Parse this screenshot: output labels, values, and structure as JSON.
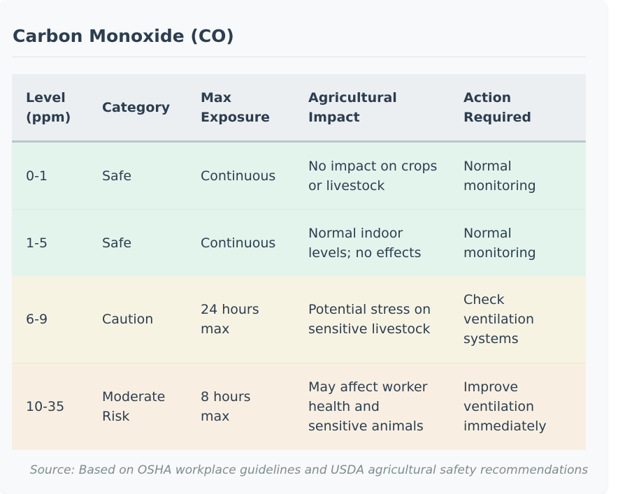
{
  "title": "Carbon Monoxide (CO)",
  "table": {
    "headers": {
      "level": "Level (ppm)",
      "category": "Category",
      "max_exposure": "Max Exposure",
      "impact": "Agricultural Impact",
      "action": "Action Required"
    },
    "rows": [
      {
        "level": "0-1",
        "category": "Safe",
        "max_exposure": "Continuous",
        "impact": "No impact on crops or livestock",
        "action": "Normal monitoring",
        "color": "#e3f4ec"
      },
      {
        "level": "1-5",
        "category": "Safe",
        "max_exposure": "Continuous",
        "impact": "Normal indoor levels; no effects",
        "action": "Normal monitoring",
        "color": "#e3f4ec"
      },
      {
        "level": "6-9",
        "category": "Caution",
        "max_exposure": "24 hours max",
        "impact": "Potential stress on sensitive livestock",
        "action": "Check ventilation systems",
        "color": "#f7f3e3"
      },
      {
        "level": "10-35",
        "category": "Moderate Risk",
        "max_exposure": "8 hours max",
        "impact": "May affect worker health and sensitive animals",
        "action": "Improve ventilation immediately",
        "color": "#f8efe2"
      }
    ]
  },
  "source": "Source: Based on OSHA workplace guidelines and USDA agricultural safety recommendations"
}
